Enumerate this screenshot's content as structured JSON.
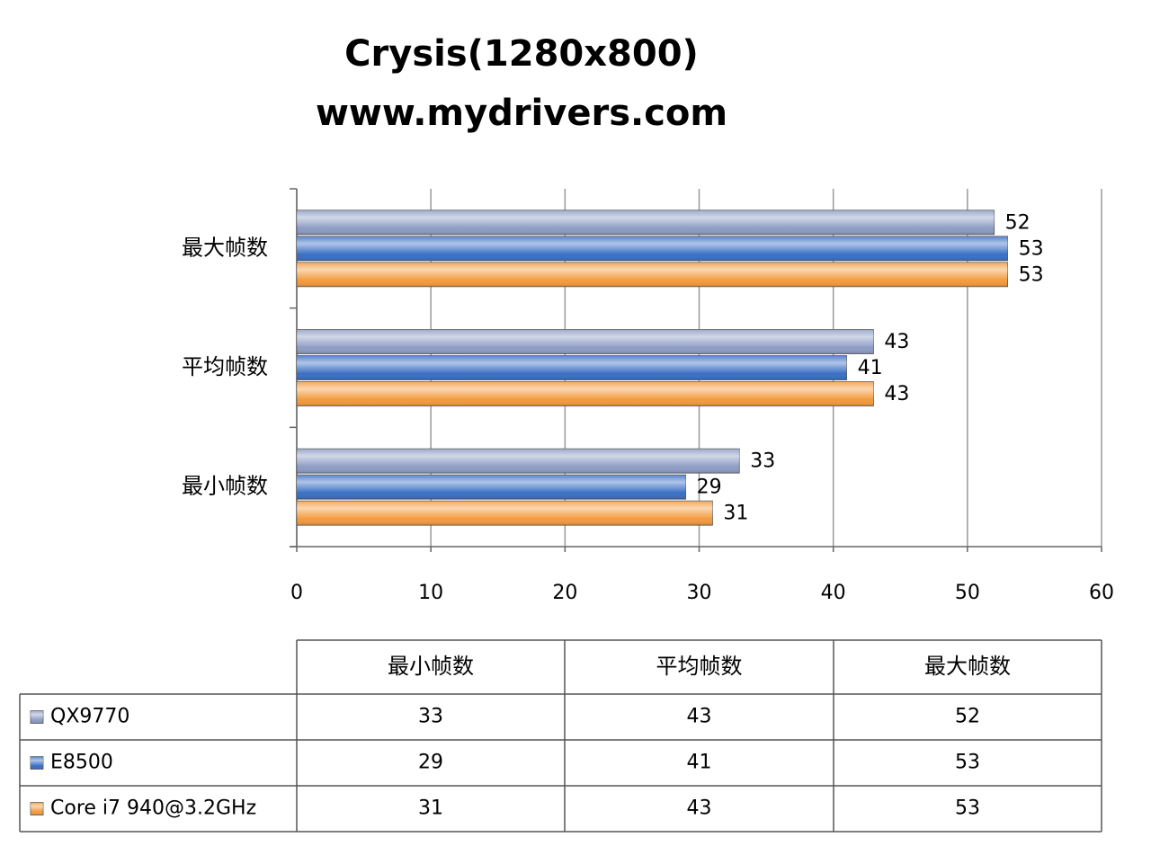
{
  "chart_data": {
    "type": "bar",
    "orientation": "horizontal",
    "title": "Crysis(1280x800)",
    "subtitle": "www.mydrivers.com",
    "categories": [
      "最小帧数",
      "平均帧数",
      "最大帧数"
    ],
    "series": [
      {
        "name": "QX9770",
        "color": "#8d9cc4",
        "values": [
          33,
          43,
          52
        ]
      },
      {
        "name": "E8500",
        "color": "#3a6fc4",
        "values": [
          29,
          41,
          53
        ]
      },
      {
        "name": "Core i7 940@3.2GHz",
        "color": "#f39a3c",
        "values": [
          31,
          43,
          53
        ]
      }
    ],
    "xlim": [
      0,
      60
    ],
    "xticks": [
      0,
      10,
      20,
      30,
      40,
      50,
      60
    ],
    "grid": true
  }
}
